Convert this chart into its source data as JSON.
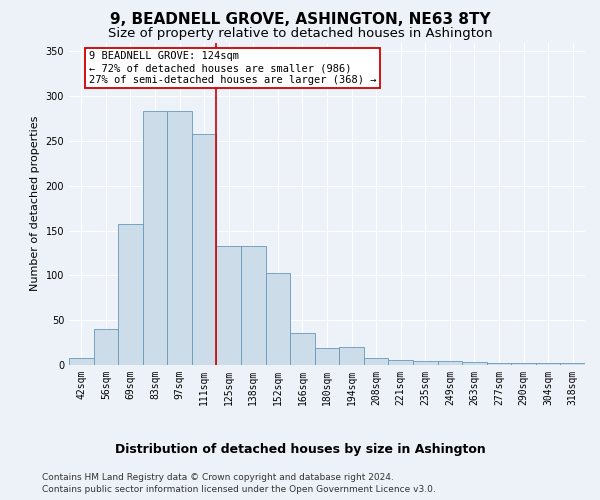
{
  "title_line1": "9, BEADNELL GROVE, ASHINGTON, NE63 8TY",
  "title_line2": "Size of property relative to detached houses in Ashington",
  "xlabel": "Distribution of detached houses by size in Ashington",
  "ylabel": "Number of detached properties",
  "categories": [
    "42sqm",
    "56sqm",
    "69sqm",
    "83sqm",
    "97sqm",
    "111sqm",
    "125sqm",
    "138sqm",
    "152sqm",
    "166sqm",
    "180sqm",
    "194sqm",
    "208sqm",
    "221sqm",
    "235sqm",
    "249sqm",
    "263sqm",
    "277sqm",
    "290sqm",
    "304sqm",
    "318sqm"
  ],
  "values": [
    8,
    40,
    157,
    283,
    283,
    258,
    133,
    133,
    103,
    36,
    19,
    20,
    8,
    6,
    5,
    4,
    3,
    2,
    2,
    2,
    2
  ],
  "bar_color": "#ccdce8",
  "bar_edge_color": "#6699bb",
  "bar_width": 1.0,
  "vline_index": 6,
  "vline_color": "#cc0000",
  "annotation_text_line1": "9 BEADNELL GROVE: 124sqm",
  "annotation_text_line2": "← 72% of detached houses are smaller (986)",
  "annotation_text_line3": "27% of semi-detached houses are larger (368) →",
  "annotation_box_color": "#cc0000",
  "ylim": [
    0,
    360
  ],
  "yticks": [
    0,
    50,
    100,
    150,
    200,
    250,
    300,
    350
  ],
  "footer_line1": "Contains HM Land Registry data © Crown copyright and database right 2024.",
  "footer_line2": "Contains public sector information licensed under the Open Government Licence v3.0.",
  "background_color": "#edf2f9",
  "grid_color": "#ffffff",
  "title_fontsize": 11,
  "subtitle_fontsize": 9.5,
  "ylabel_fontsize": 8,
  "xlabel_fontsize": 9,
  "tick_fontsize": 7,
  "annot_fontsize": 7.5,
  "footer_fontsize": 6.5
}
